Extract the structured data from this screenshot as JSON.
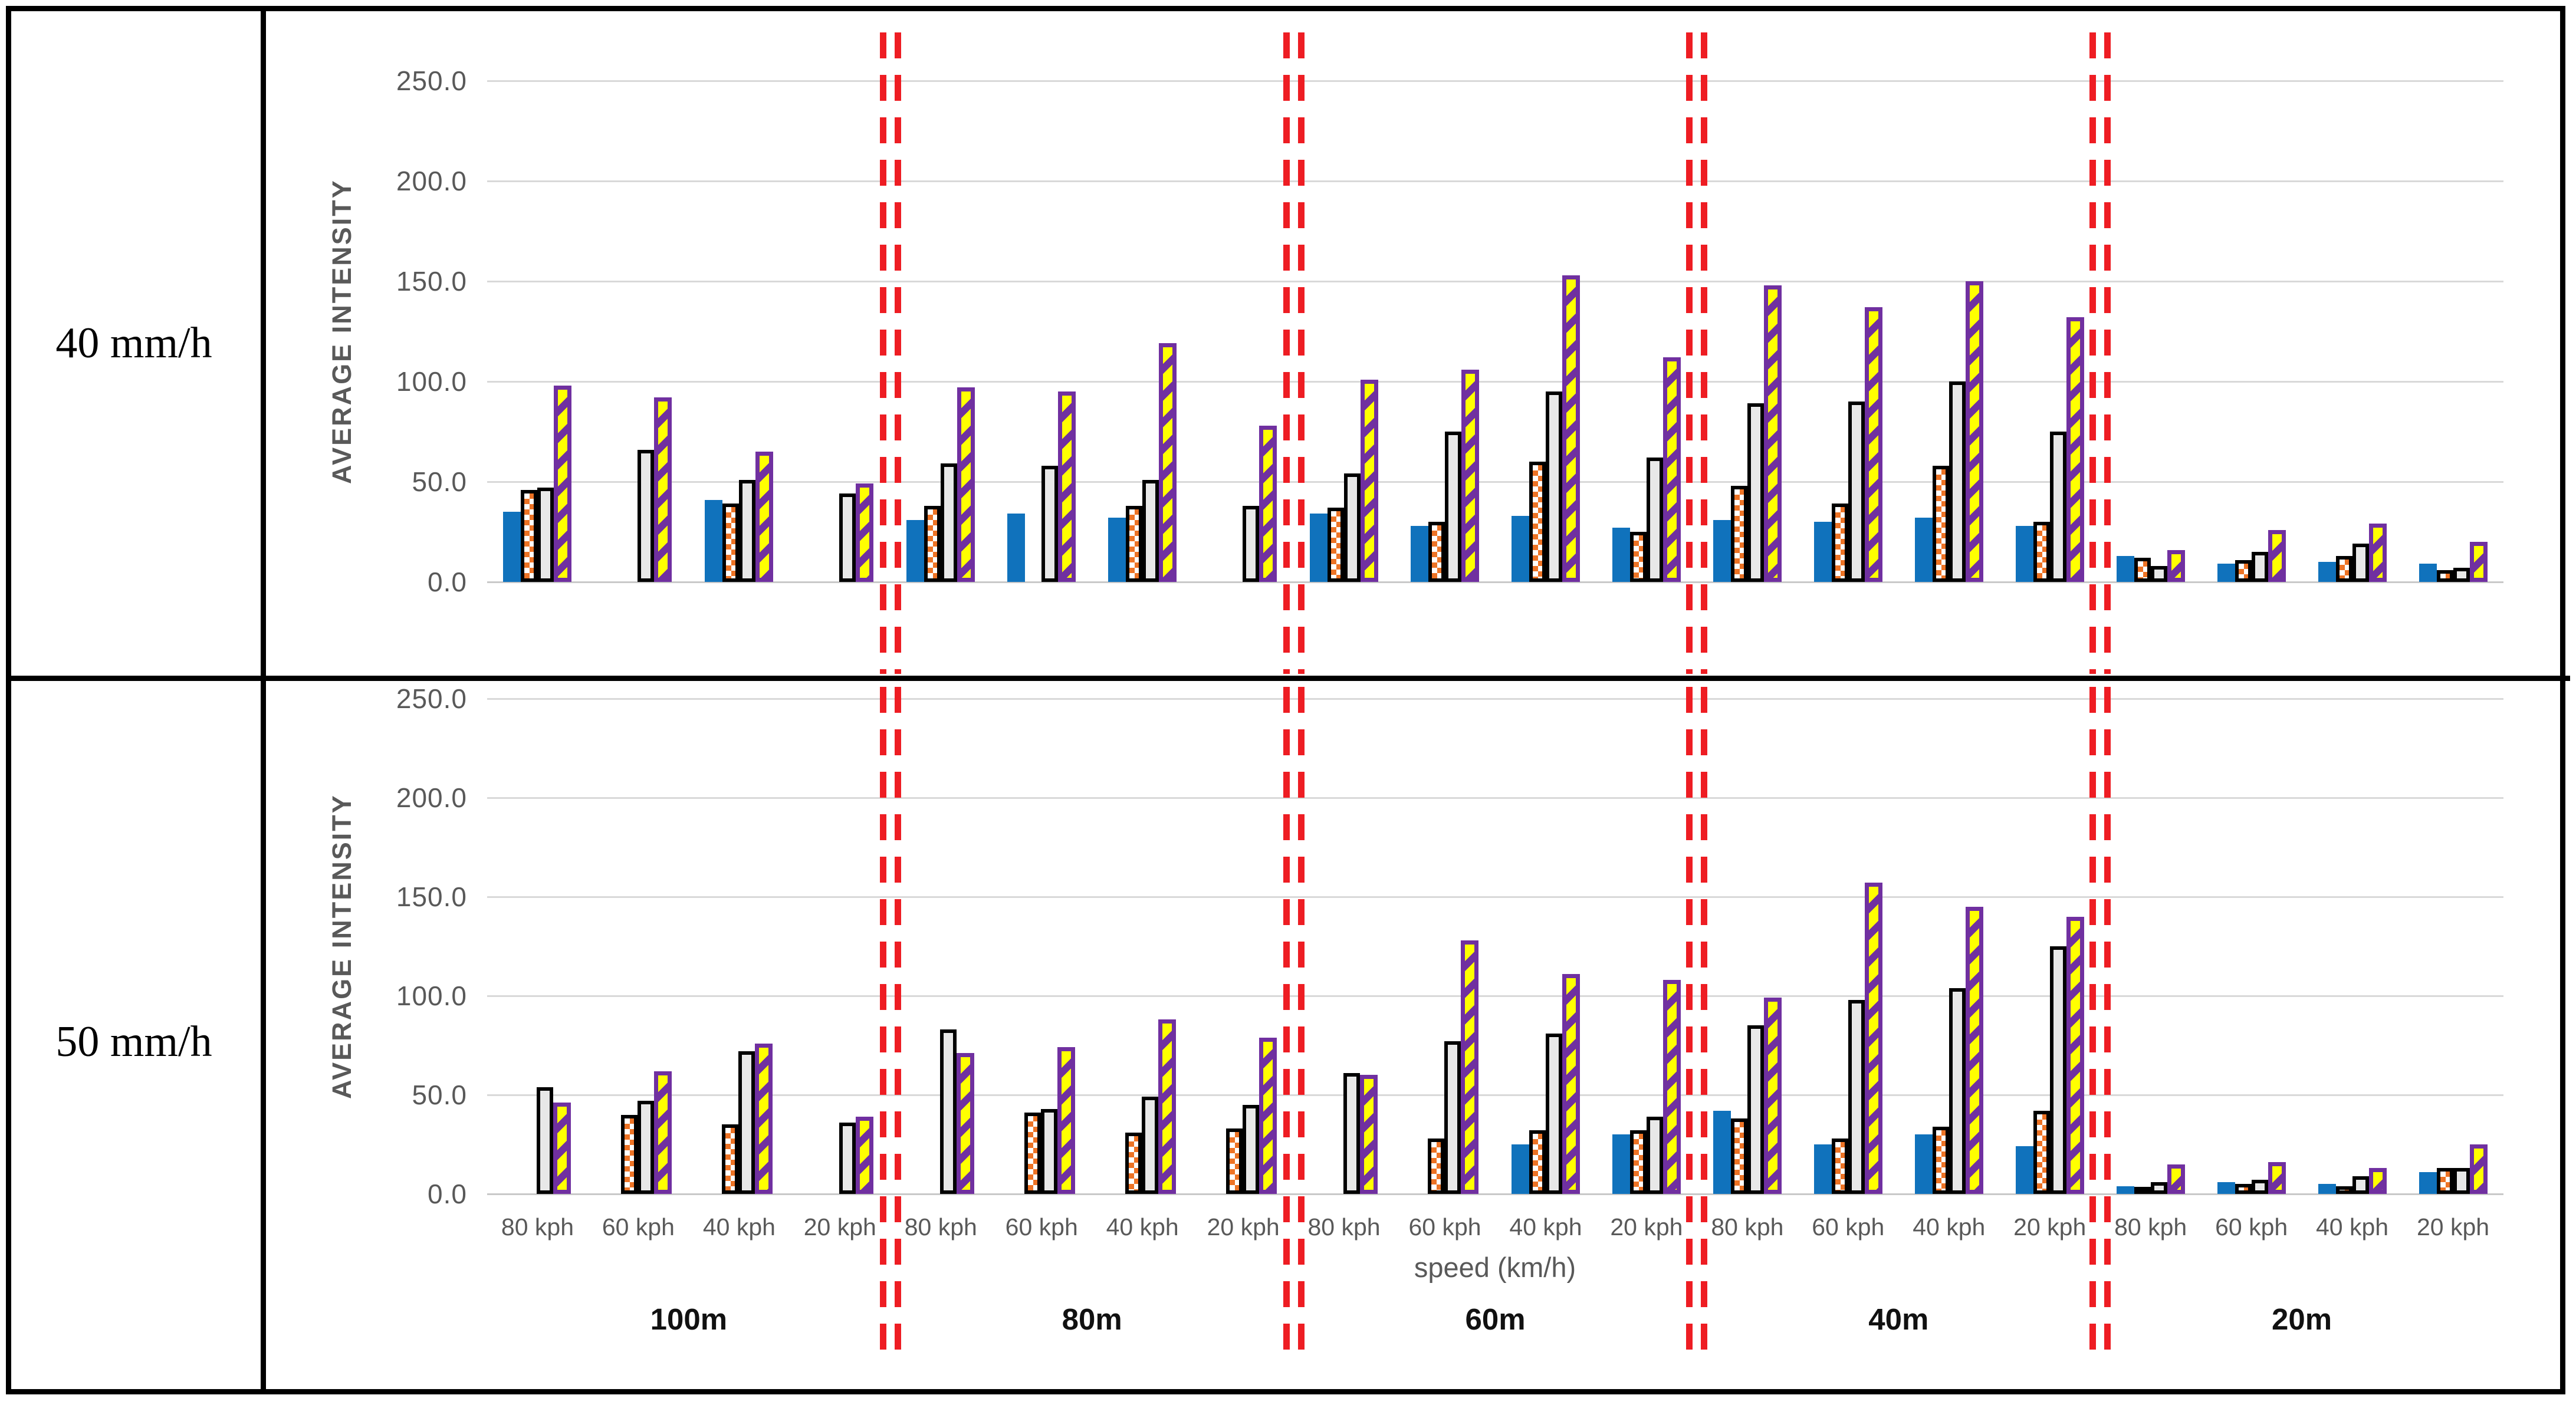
{
  "table": {
    "rows": [
      {
        "label": "40 mm/h"
      },
      {
        "label": "50 mm/h"
      }
    ]
  },
  "colors": {
    "blue_bar": "#1072BC",
    "orange_checker": "#ED7325",
    "gray_bar_fill": "#E8E8E8",
    "gray_bar_border": "#000000",
    "yellow_bar_fill": "#FFFF00",
    "purple_stripe": "#7030A0",
    "separator_red": "#EE1D23",
    "gridline": "#D9D9D9",
    "axis_text": "#595959",
    "table_border": "#000000"
  },
  "chart_data": [
    {
      "type": "bar",
      "row_label": "40 mm/h",
      "ylabel": "AVERAGE INTENSITY",
      "xlabel": "",
      "ylim": [
        0,
        250
      ],
      "yticks": [
        "0.0",
        "50.0",
        "100.0",
        "150.0",
        "200.0",
        "250.0"
      ],
      "grid": true,
      "legend_position": "none",
      "series_names": [
        "blue-solid",
        "orange-checkered",
        "gray-solid",
        "yellow-purple-striped"
      ],
      "sections": [
        {
          "distance": "100m",
          "groups": [
            {
              "speed": "80 kph",
              "values": [
                35,
                46,
                47,
                98
              ]
            },
            {
              "speed": "60 kph",
              "values": [
                0,
                0,
                66,
                92
              ]
            },
            {
              "speed": "40 kph",
              "values": [
                41,
                39,
                51,
                65
              ]
            },
            {
              "speed": "20 kph",
              "values": [
                0,
                0,
                44,
                49
              ]
            }
          ]
        },
        {
          "distance": "80m",
          "groups": [
            {
              "speed": "80 kph",
              "values": [
                31,
                38,
                59,
                97
              ]
            },
            {
              "speed": "60 kph",
              "values": [
                34,
                0,
                58,
                95
              ]
            },
            {
              "speed": "40 kph",
              "values": [
                32,
                38,
                51,
                119
              ]
            },
            {
              "speed": "20 kph",
              "values": [
                0,
                0,
                38,
                78
              ]
            }
          ]
        },
        {
          "distance": "60m",
          "groups": [
            {
              "speed": "80 kph",
              "values": [
                34,
                37,
                54,
                101
              ]
            },
            {
              "speed": "60 kph",
              "values": [
                28,
                30,
                75,
                106
              ]
            },
            {
              "speed": "40 kph",
              "values": [
                33,
                60,
                95,
                153
              ]
            },
            {
              "speed": "20 kph",
              "values": [
                27,
                25,
                62,
                112
              ]
            }
          ]
        },
        {
          "distance": "40m",
          "groups": [
            {
              "speed": "80 kph",
              "values": [
                31,
                48,
                89,
                148
              ]
            },
            {
              "speed": "60 kph",
              "values": [
                30,
                39,
                90,
                137
              ]
            },
            {
              "speed": "40 kph",
              "values": [
                32,
                58,
                100,
                150
              ]
            },
            {
              "speed": "20 kph",
              "values": [
                28,
                30,
                75,
                132
              ]
            }
          ]
        },
        {
          "distance": "20m",
          "groups": [
            {
              "speed": "80 kph",
              "values": [
                13,
                12,
                8,
                16
              ]
            },
            {
              "speed": "60 kph",
              "values": [
                9,
                11,
                15,
                26
              ]
            },
            {
              "speed": "40 kph",
              "values": [
                10,
                13,
                19,
                29
              ]
            },
            {
              "speed": "20 kph",
              "values": [
                9,
                6,
                7,
                20
              ]
            }
          ]
        }
      ]
    },
    {
      "type": "bar",
      "row_label": "50 mm/h",
      "ylabel": "AVERAGE INTENSITY",
      "xlabel": "speed (km/h)",
      "ylim": [
        0,
        250
      ],
      "yticks": [
        "0.0",
        "50.0",
        "100.0",
        "150.0",
        "200.0",
        "250.0"
      ],
      "grid": true,
      "legend_position": "none",
      "series_names": [
        "blue-solid",
        "orange-checkered",
        "gray-solid",
        "yellow-purple-striped"
      ],
      "sections": [
        {
          "distance": "100m",
          "groups": [
            {
              "speed": "80 kph",
              "values": [
                0,
                0,
                54,
                46
              ]
            },
            {
              "speed": "60 kph",
              "values": [
                0,
                40,
                47,
                62
              ]
            },
            {
              "speed": "40 kph",
              "values": [
                0,
                35,
                72,
                76
              ]
            },
            {
              "speed": "20 kph",
              "values": [
                0,
                0,
                36,
                39
              ]
            }
          ]
        },
        {
          "distance": "80m",
          "groups": [
            {
              "speed": "80 kph",
              "values": [
                0,
                0,
                83,
                71
              ]
            },
            {
              "speed": "60 kph",
              "values": [
                0,
                41,
                43,
                74
              ]
            },
            {
              "speed": "40 kph",
              "values": [
                0,
                31,
                49,
                88
              ]
            },
            {
              "speed": "20 kph",
              "values": [
                0,
                33,
                45,
                79
              ]
            }
          ]
        },
        {
          "distance": "60m",
          "groups": [
            {
              "speed": "80 kph",
              "values": [
                0,
                0,
                61,
                60
              ]
            },
            {
              "speed": "60 kph",
              "values": [
                0,
                28,
                77,
                128
              ]
            },
            {
              "speed": "40 kph",
              "values": [
                25,
                32,
                81,
                111
              ]
            },
            {
              "speed": "20 kph",
              "values": [
                30,
                32,
                39,
                108
              ]
            }
          ]
        },
        {
          "distance": "40m",
          "groups": [
            {
              "speed": "80 kph",
              "values": [
                42,
                38,
                85,
                99
              ]
            },
            {
              "speed": "60 kph",
              "values": [
                25,
                28,
                98,
                157
              ]
            },
            {
              "speed": "40 kph",
              "values": [
                30,
                34,
                104,
                145
              ]
            },
            {
              "speed": "20 kph",
              "values": [
                24,
                42,
                125,
                140
              ]
            }
          ]
        },
        {
          "distance": "20m",
          "groups": [
            {
              "speed": "80 kph",
              "values": [
                4,
                3,
                6,
                15
              ]
            },
            {
              "speed": "60 kph",
              "values": [
                6,
                5,
                7,
                16
              ]
            },
            {
              "speed": "40 kph",
              "values": [
                5,
                4,
                9,
                13
              ]
            },
            {
              "speed": "20 kph",
              "values": [
                11,
                13,
                13,
                25
              ]
            }
          ]
        }
      ]
    }
  ]
}
